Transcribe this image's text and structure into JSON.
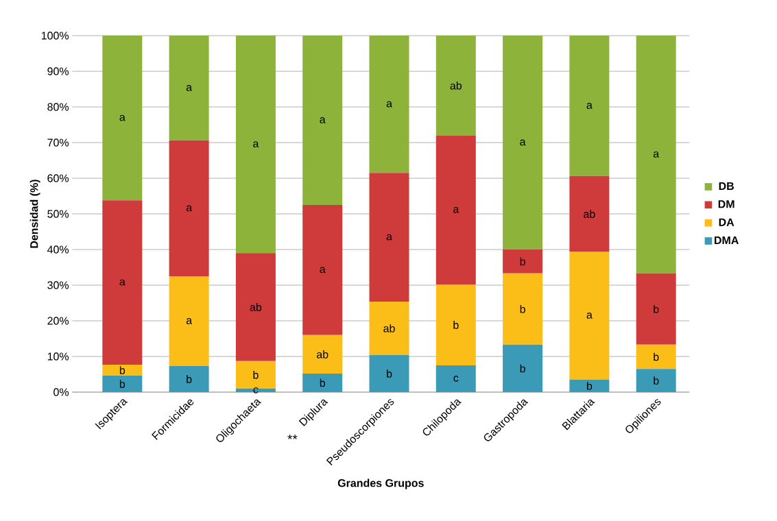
{
  "chart_data": {
    "type": "bar",
    "stacked": true,
    "xlabel": "Grandes Grupos",
    "ylabel": "Densidad (%)",
    "categories": [
      "Isoptera",
      "Formicidae",
      "Oligochaeta",
      "Diplura",
      "Pseudoscorpiones",
      "Chilopoda",
      "Gastropoda",
      "Blattaria",
      "Opiliones"
    ],
    "series": [
      {
        "name": "DMA",
        "color": "#3b9ab5",
        "values": [
          4.6,
          7.3,
          1.0,
          5.2,
          10.4,
          7.5,
          13.3,
          3.5,
          6.5
        ],
        "value_labels": [
          "b",
          "b",
          "c",
          "b",
          "b",
          "c",
          "b",
          "b",
          "b"
        ]
      },
      {
        "name": "DA",
        "color": "#fbbe18",
        "values": [
          3.1,
          25.2,
          7.7,
          10.8,
          15.0,
          22.7,
          20.0,
          35.9,
          6.8
        ],
        "value_labels": [
          "b",
          "a",
          "b",
          "ab",
          "ab",
          "b",
          "b",
          "a",
          "b"
        ]
      },
      {
        "name": "DM",
        "color": "#cf3a3b",
        "values": [
          46.1,
          38.1,
          30.3,
          36.5,
          36.1,
          41.8,
          6.7,
          21.2,
          20.0
        ],
        "value_labels": [
          "a",
          "a",
          "ab",
          "a",
          "a",
          "a",
          "b",
          "ab",
          "b"
        ]
      },
      {
        "name": "DB",
        "color": "#8db33a",
        "values": [
          46.2,
          29.4,
          61.0,
          47.5,
          38.5,
          28.0,
          60.0,
          39.4,
          66.7
        ],
        "value_labels": [
          "a",
          "a",
          "a",
          "a",
          "a",
          "ab",
          "a",
          "a",
          "a"
        ]
      }
    ],
    "ylim": [
      0,
      100
    ],
    "yticks": [
      {
        "value": 0,
        "label": "0%"
      },
      {
        "value": 10,
        "label": "10%"
      },
      {
        "value": 20,
        "label": "20%"
      },
      {
        "value": 30,
        "label": "30%"
      },
      {
        "value": 40,
        "label": "40%"
      },
      {
        "value": 50,
        "label": "50%"
      },
      {
        "value": 60,
        "label": "60%"
      },
      {
        "value": 70,
        "label": "70%"
      },
      {
        "value": 80,
        "label": "80%"
      },
      {
        "value": 90,
        "label": "90%"
      },
      {
        "value": 100,
        "label": "100%"
      }
    ],
    "grid": "y",
    "legend": "right",
    "annotations": [
      "**"
    ]
  }
}
